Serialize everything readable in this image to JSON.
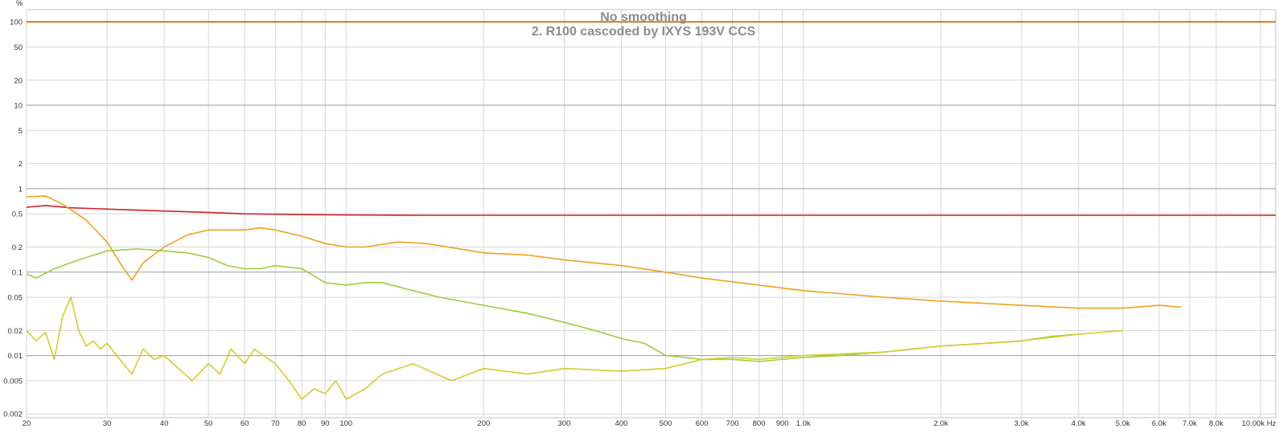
{
  "chart_data": {
    "type": "line",
    "title": "No smoothing",
    "subtitle": "2. R100 cascoded by IXYS 193V CCS",
    "ylabel": "%",
    "xunit": "Hz",
    "xscale": "log",
    "yscale": "log",
    "xlim": [
      20,
      10800
    ],
    "ylim": [
      0.0018,
      140
    ],
    "grid": true,
    "x_ticks": [
      {
        "value": 20,
        "label": "20"
      },
      {
        "value": 30,
        "label": "30"
      },
      {
        "value": 40,
        "label": "40"
      },
      {
        "value": 50,
        "label": "50"
      },
      {
        "value": 60,
        "label": "60"
      },
      {
        "value": 70,
        "label": "70"
      },
      {
        "value": 80,
        "label": "80"
      },
      {
        "value": 90,
        "label": "90"
      },
      {
        "value": 100,
        "label": "100"
      },
      {
        "value": 200,
        "label": "200"
      },
      {
        "value": 300,
        "label": "300"
      },
      {
        "value": 400,
        "label": "400"
      },
      {
        "value": 500,
        "label": "500"
      },
      {
        "value": 600,
        "label": "600"
      },
      {
        "value": 700,
        "label": "700"
      },
      {
        "value": 800,
        "label": "800"
      },
      {
        "value": 900,
        "label": "900"
      },
      {
        "value": 1000,
        "label": "1.0k"
      },
      {
        "value": 2000,
        "label": "2.0k"
      },
      {
        "value": 3000,
        "label": "3.0k"
      },
      {
        "value": 4000,
        "label": "4.0k"
      },
      {
        "value": 5000,
        "label": "5.0k"
      },
      {
        "value": 6000,
        "label": "6.0k"
      },
      {
        "value": 7000,
        "label": "7.0k"
      },
      {
        "value": 8000,
        "label": "8.0k"
      },
      {
        "value": 10000,
        "label": "10.00k Hz"
      }
    ],
    "y_ticks": [
      {
        "value": 100,
        "label": "100"
      },
      {
        "value": 50,
        "label": "50"
      },
      {
        "value": 20,
        "label": "20"
      },
      {
        "value": 10,
        "label": "10"
      },
      {
        "value": 5,
        "label": "5"
      },
      {
        "value": 2,
        "label": "2"
      },
      {
        "value": 1,
        "label": "1"
      },
      {
        "value": 0.5,
        "label": "0.5"
      },
      {
        "value": 0.2,
        "label": "0.2"
      },
      {
        "value": 0.1,
        "label": "0.1"
      },
      {
        "value": 0.05,
        "label": "0.05"
      },
      {
        "value": 0.02,
        "label": "0.02"
      },
      {
        "value": 0.01,
        "label": "0.01"
      },
      {
        "value": 0.005,
        "label": "0.005"
      },
      {
        "value": 0.002,
        "label": "0.002"
      }
    ],
    "y_major_lines": [
      100,
      10,
      1,
      0.1,
      0.01
    ],
    "series": [
      {
        "color": "#c8782a",
        "x": [
          20,
          10800
        ],
        "y": [
          100,
          100
        ]
      },
      {
        "color": "#cc2222",
        "x": [
          20,
          22,
          25,
          30,
          40,
          50,
          60,
          80,
          100,
          150,
          200,
          500,
          1000,
          2000,
          5000,
          10800
        ],
        "y": [
          0.6,
          0.63,
          0.59,
          0.57,
          0.54,
          0.52,
          0.5,
          0.49,
          0.485,
          0.48,
          0.48,
          0.48,
          0.48,
          0.48,
          0.48,
          0.48
        ]
      },
      {
        "color": "#f0a020",
        "x": [
          20,
          22,
          24,
          27,
          30,
          32,
          34,
          36,
          40,
          45,
          50,
          55,
          60,
          65,
          70,
          80,
          90,
          100,
          110,
          130,
          150,
          200,
          250,
          300,
          400,
          500,
          600,
          800,
          1000,
          1500,
          2000,
          3000,
          4000,
          5000,
          6000,
          6700
        ],
        "y": [
          0.8,
          0.82,
          0.65,
          0.42,
          0.23,
          0.13,
          0.08,
          0.13,
          0.2,
          0.28,
          0.32,
          0.32,
          0.32,
          0.34,
          0.32,
          0.27,
          0.22,
          0.2,
          0.2,
          0.23,
          0.22,
          0.17,
          0.16,
          0.14,
          0.12,
          0.1,
          0.085,
          0.07,
          0.06,
          0.05,
          0.045,
          0.04,
          0.037,
          0.037,
          0.04,
          0.038
        ]
      },
      {
        "color": "#9ccc3c",
        "x": [
          20,
          21,
          23,
          26,
          30,
          35,
          40,
          45,
          50,
          55,
          60,
          65,
          70,
          80,
          90,
          100,
          110,
          120,
          140,
          160,
          200,
          250,
          300,
          350,
          400,
          450,
          500,
          550,
          600,
          700,
          800,
          1000,
          1200,
          1500,
          2000,
          2500,
          3000,
          3500,
          4000
        ],
        "y": [
          0.095,
          0.085,
          0.11,
          0.14,
          0.18,
          0.19,
          0.18,
          0.17,
          0.15,
          0.12,
          0.11,
          0.11,
          0.12,
          0.11,
          0.075,
          0.07,
          0.075,
          0.075,
          0.06,
          0.05,
          0.04,
          0.032,
          0.025,
          0.02,
          0.016,
          0.014,
          0.01,
          0.0095,
          0.009,
          0.009,
          0.0085,
          0.0095,
          0.01,
          0.011,
          0.013,
          0.014,
          0.015,
          0.017,
          0.018
        ]
      },
      {
        "color": "#d4cc2c",
        "x": [
          20,
          21,
          22,
          23,
          24,
          25,
          26,
          27,
          28,
          29,
          30,
          32,
          34,
          36,
          38,
          40,
          43,
          46,
          50,
          53,
          56,
          60,
          63,
          66,
          70,
          75,
          80,
          85,
          90,
          95,
          100,
          110,
          120,
          140,
          170,
          200,
          250,
          300,
          400,
          500,
          600,
          700,
          800,
          1000,
          1500,
          2000,
          3000,
          4000,
          5000
        ],
        "y": [
          0.02,
          0.015,
          0.019,
          0.009,
          0.03,
          0.05,
          0.02,
          0.013,
          0.015,
          0.012,
          0.014,
          0.009,
          0.006,
          0.012,
          0.009,
          0.01,
          0.007,
          0.005,
          0.008,
          0.006,
          0.012,
          0.008,
          0.012,
          0.01,
          0.008,
          0.005,
          0.003,
          0.004,
          0.0035,
          0.005,
          0.003,
          0.004,
          0.006,
          0.008,
          0.005,
          0.007,
          0.006,
          0.007,
          0.0065,
          0.007,
          0.009,
          0.0095,
          0.009,
          0.01,
          0.011,
          0.013,
          0.015,
          0.018,
          0.02
        ]
      }
    ]
  }
}
